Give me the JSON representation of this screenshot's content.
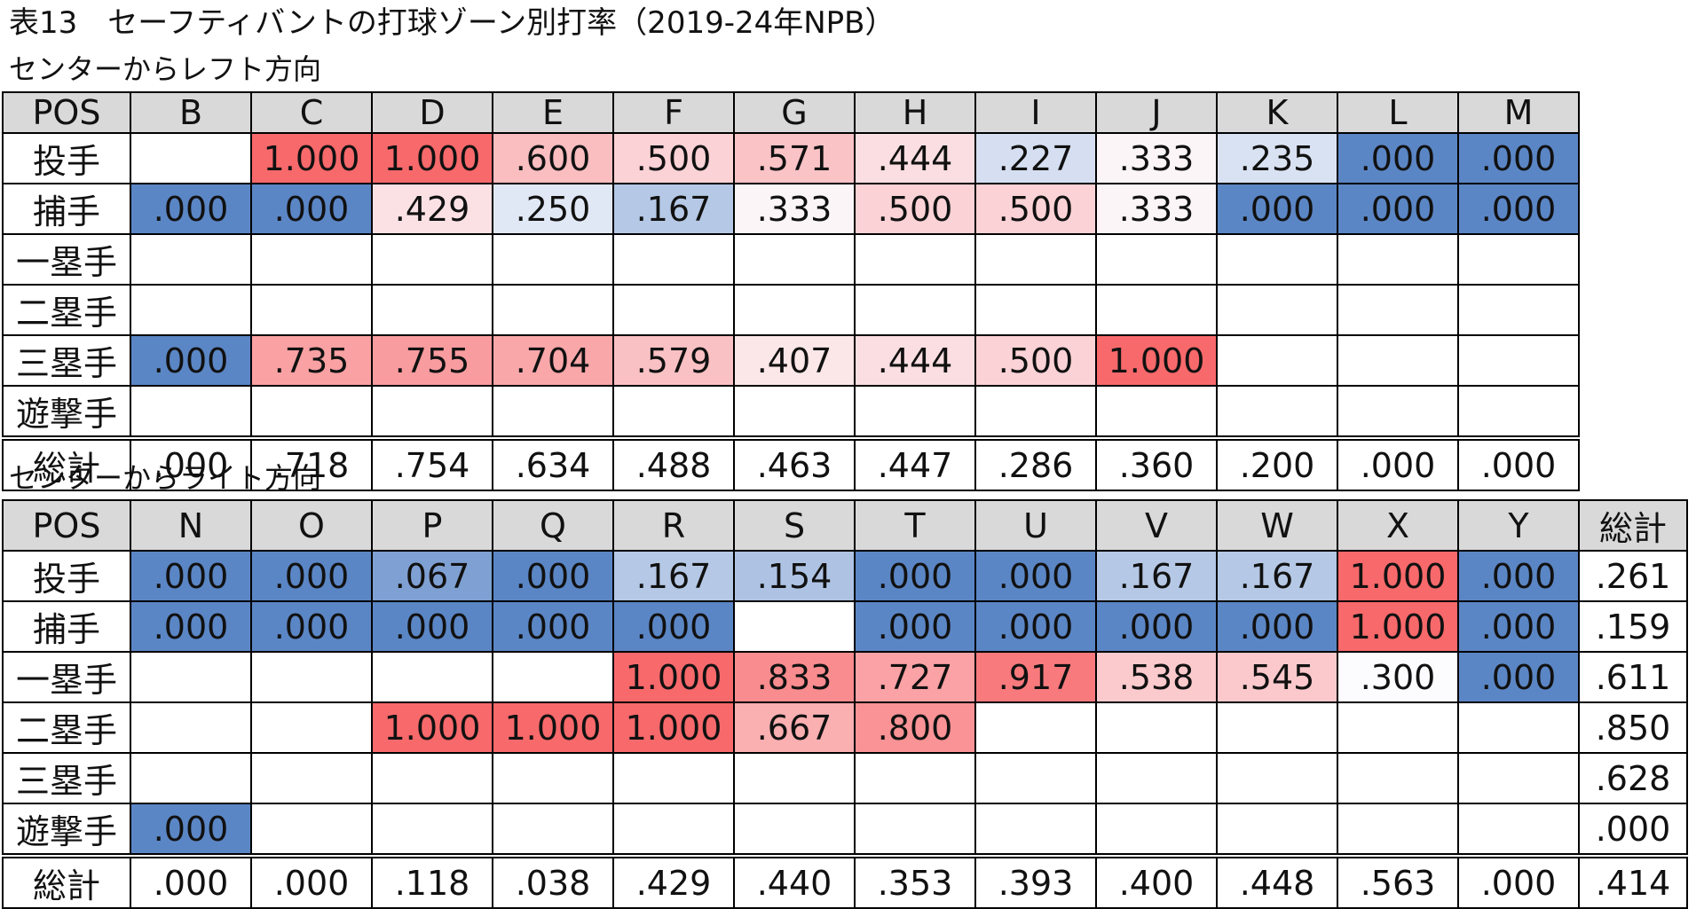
{
  "title": "表13　セーフティバントの打球ゾーン別打率（2019-24年NPB）",
  "section1": {
    "subtitle": "センターからレフト方向",
    "corner": "POS",
    "columns": [
      "B",
      "C",
      "D",
      "E",
      "F",
      "G",
      "H",
      "I",
      "J",
      "K",
      "L",
      "M"
    ],
    "rows": [
      {
        "pos": "投手",
        "cells": [
          "",
          "1.000",
          "1.000",
          ".600",
          ".500",
          ".571",
          ".444",
          ".227",
          ".333",
          ".235",
          ".000",
          ".000"
        ]
      },
      {
        "pos": "捕手",
        "cells": [
          ".000",
          ".000",
          ".429",
          ".250",
          ".167",
          ".333",
          ".500",
          ".500",
          ".333",
          ".000",
          ".000",
          ".000"
        ]
      },
      {
        "pos": "一塁手",
        "cells": [
          "",
          "",
          "",
          "",
          "",
          "",
          "",
          "",
          "",
          "",
          "",
          ""
        ]
      },
      {
        "pos": "二塁手",
        "cells": [
          "",
          "",
          "",
          "",
          "",
          "",
          "",
          "",
          "",
          "",
          "",
          ""
        ]
      },
      {
        "pos": "三塁手",
        "cells": [
          ".000",
          ".735",
          ".755",
          ".704",
          ".579",
          ".407",
          ".444",
          ".500",
          "1.000",
          "",
          "",
          ""
        ]
      },
      {
        "pos": "遊撃手",
        "cells": [
          "",
          "",
          "",
          "",
          "",
          "",
          "",
          "",
          "",
          "",
          "",
          ""
        ]
      },
      {
        "pos": "総計",
        "cells": [
          ".000",
          ".718",
          ".754",
          ".634",
          ".488",
          ".463",
          ".447",
          ".286",
          ".360",
          ".200",
          ".000",
          ".000"
        ],
        "total": true
      }
    ]
  },
  "section2": {
    "subtitle": "センターからライト方向",
    "corner": "POS",
    "columns": [
      "N",
      "O",
      "P",
      "Q",
      "R",
      "S",
      "T",
      "U",
      "V",
      "W",
      "X",
      "Y"
    ],
    "total_label": "総計",
    "rows": [
      {
        "pos": "投手",
        "cells": [
          ".000",
          ".000",
          ".067",
          ".000",
          ".167",
          ".154",
          ".000",
          ".000",
          ".167",
          ".167",
          "1.000",
          ".000"
        ],
        "sum": ".261"
      },
      {
        "pos": "捕手",
        "cells": [
          ".000",
          ".000",
          ".000",
          ".000",
          ".000",
          "",
          ".000",
          ".000",
          ".000",
          ".000",
          "1.000",
          ".000"
        ],
        "sum": ".159"
      },
      {
        "pos": "一塁手",
        "cells": [
          "",
          "",
          "",
          "",
          "1.000",
          ".833",
          ".727",
          ".917",
          ".538",
          ".545",
          ".300",
          ".000"
        ],
        "sum": ".611"
      },
      {
        "pos": "二塁手",
        "cells": [
          "",
          "",
          "1.000",
          "1.000",
          "1.000",
          ".667",
          ".800",
          "",
          "",
          "",
          "",
          ""
        ],
        "sum": ".850"
      },
      {
        "pos": "三塁手",
        "cells": [
          "",
          "",
          "",
          "",
          "",
          "",
          "",
          "",
          "",
          "",
          "",
          ""
        ],
        "sum": ".628"
      },
      {
        "pos": "遊撃手",
        "cells": [
          ".000",
          "",
          "",
          "",
          "",
          "",
          "",
          "",
          "",
          "",
          "",
          ""
        ],
        "sum": ".000"
      },
      {
        "pos": "総計",
        "cells": [
          ".000",
          ".000",
          ".118",
          ".038",
          ".429",
          ".440",
          ".353",
          ".393",
          ".400",
          ".448",
          ".563",
          ".000"
        ],
        "sum": ".414",
        "total": true
      }
    ]
  },
  "colors": {
    "header_bg": "#d9d9d9",
    "scale_low": "#5b86c5",
    "scale_mid": "#fcfcff",
    "scale_high": "#f8696b",
    "scale_midpoint": 0.3
  }
}
